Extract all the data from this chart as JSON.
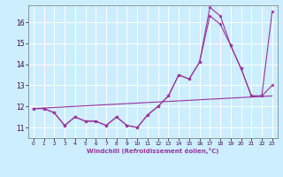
{
  "xlabel": "Windchill (Refroidissement éolien,°C)",
  "background_color": "#cceeff",
  "grid_color": "#ffffff",
  "line_color": "#993399",
  "xlim": [
    -0.5,
    23.5
  ],
  "ylim": [
    10.5,
    16.8
  ],
  "yticks": [
    11,
    12,
    13,
    14,
    15,
    16
  ],
  "xticks": [
    0,
    1,
    2,
    3,
    4,
    5,
    6,
    7,
    8,
    9,
    10,
    11,
    12,
    13,
    14,
    15,
    16,
    17,
    18,
    19,
    20,
    21,
    22,
    23
  ],
  "series1_x": [
    0,
    1,
    2,
    3,
    4,
    5,
    6,
    7,
    8,
    9,
    10,
    11,
    12,
    13,
    14,
    15,
    16,
    17,
    18,
    19,
    20,
    21,
    22,
    23
  ],
  "series1_y": [
    11.9,
    11.9,
    11.7,
    11.1,
    11.5,
    11.3,
    11.3,
    11.1,
    11.5,
    11.1,
    11.0,
    11.6,
    12.0,
    12.5,
    13.5,
    13.3,
    14.1,
    16.3,
    15.9,
    14.9,
    13.8,
    12.5,
    12.5,
    13.0
  ],
  "series2_x": [
    0,
    1,
    2,
    3,
    4,
    5,
    6,
    7,
    8,
    9,
    10,
    11,
    12,
    13,
    14,
    15,
    16,
    17,
    18,
    19,
    20,
    21,
    22,
    23
  ],
  "series2_y": [
    11.9,
    11.9,
    11.7,
    11.1,
    11.5,
    11.3,
    11.3,
    11.1,
    11.5,
    11.1,
    11.0,
    11.6,
    12.0,
    12.5,
    13.5,
    13.3,
    14.1,
    16.7,
    16.3,
    14.9,
    13.8,
    12.5,
    12.5,
    16.5
  ],
  "series3_x": [
    0,
    23
  ],
  "series3_y": [
    11.9,
    12.5
  ]
}
